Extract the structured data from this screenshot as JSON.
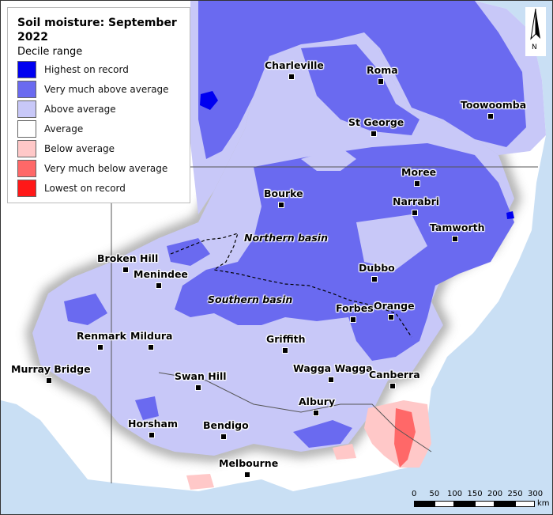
{
  "legend": {
    "title": "Soil moisture: September 2022",
    "subtitle": "Decile range",
    "items": [
      {
        "label": "Highest on record",
        "color": "#0000f0"
      },
      {
        "label": "Very much above average",
        "color": "#6a6af0"
      },
      {
        "label": "Above average",
        "color": "#c8c8f8"
      },
      {
        "label": "Average",
        "color": "#ffffff"
      },
      {
        "label": "Below average",
        "color": "#ffc8c8"
      },
      {
        "label": "Very much below average",
        "color": "#ff6868"
      },
      {
        "label": "Lowest on record",
        "color": "#ff1818"
      }
    ]
  },
  "places": [
    "Charleville",
    "Roma",
    "Toowoomba",
    "St George",
    "Moree",
    "Narrabri",
    "Bourke",
    "Tamworth",
    "Broken Hill",
    "Menindee",
    "Dubbo",
    "Orange",
    "Forbes",
    "Renmark",
    "Mildura",
    "Griffith",
    "Murray Bridge",
    "Swan Hill",
    "Wagga Wagga",
    "Canberra",
    "Albury",
    "Horsham",
    "Bendigo",
    "Melbourne"
  ],
  "basins": [
    "Northern basin",
    "Southern basin"
  ],
  "compass": "N",
  "scale": {
    "ticks": [
      "0",
      "50",
      "100",
      "150",
      "200",
      "250",
      "300"
    ],
    "unit": "km"
  },
  "colors": {
    "ocean": "#c9dff4",
    "land_outside": "#ffffff"
  }
}
